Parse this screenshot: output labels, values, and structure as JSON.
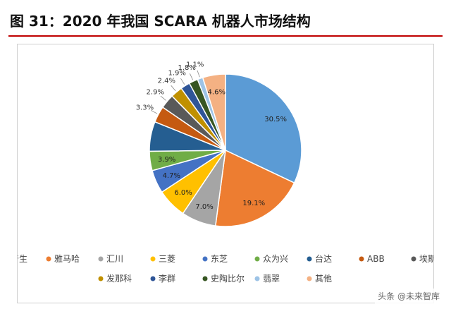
{
  "figure_title": "图 31：2020 年我国 SCARA 机器人市场结构",
  "watermark": "头条 @未来智库",
  "chart_data": {
    "type": "pie",
    "slices": [
      {
        "label": "爱普生",
        "value": 30.5,
        "value_label": "30.5%",
        "color": "#5b9bd5"
      },
      {
        "label": "雅马哈",
        "value": 19.1,
        "value_label": "19.1%",
        "color": "#ed7d31"
      },
      {
        "label": "汇川",
        "value": 7.0,
        "value_label": "7.0%",
        "color": "#a5a5a5"
      },
      {
        "label": "三菱",
        "value": 6.0,
        "value_label": "6.0%",
        "color": "#ffc000"
      },
      {
        "label": "东芝",
        "value": 4.7,
        "value_label": "4.7%",
        "color": "#4472c4"
      },
      {
        "label": "众为兴",
        "value": 3.9,
        "value_label": "3.9%",
        "color": "#70ad47"
      },
      {
        "label": "台达",
        "value": 6.0,
        "value_label": "",
        "color": "#255e91"
      },
      {
        "label": "ABB",
        "value": 3.3,
        "value_label": "3.3%",
        "color": "#c55a11"
      },
      {
        "label": "埃斯顿",
        "value": 2.9,
        "value_label": "2.9%",
        "color": "#595959"
      },
      {
        "label": "发那科",
        "value": 2.4,
        "value_label": "2.4%",
        "color": "#c09000"
      },
      {
        "label": "李群",
        "value": 1.9,
        "value_label": "1.9%",
        "color": "#2f5597"
      },
      {
        "label": "史陶比尔",
        "value": 1.8,
        "value_label": "1.8%",
        "color": "#375623"
      },
      {
        "label": "翡翠",
        "value": 1.1,
        "value_label": "1.1%",
        "color": "#9dc3e6"
      },
      {
        "label": "其他",
        "value": 4.6,
        "value_label": "4.6%",
        "color": "#f4b183"
      }
    ],
    "legend_position": "bottom"
  }
}
